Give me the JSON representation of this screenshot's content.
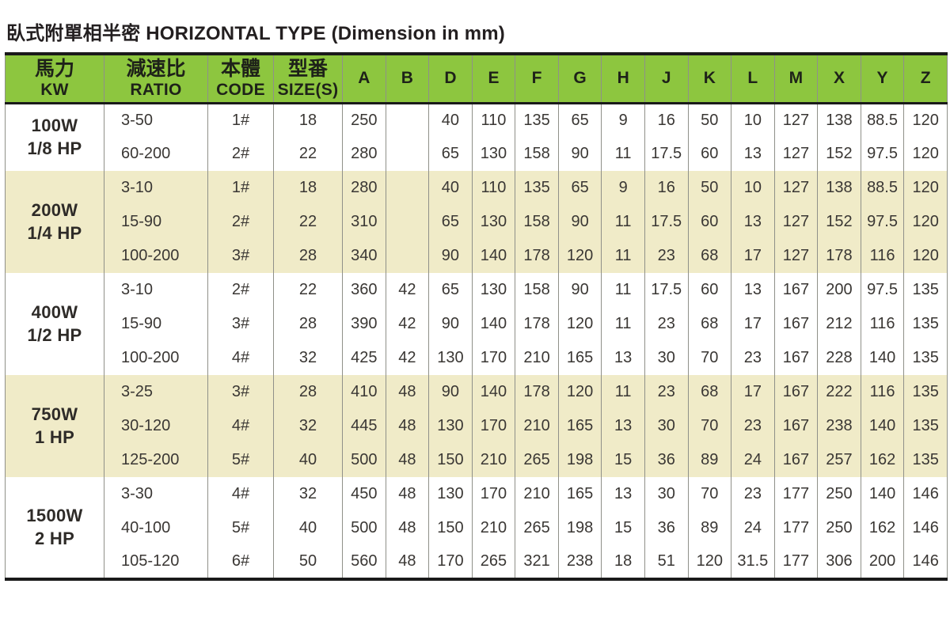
{
  "title": "臥式附單相半密 HORIZONTAL TYPE (Dimension in mm)",
  "colors": {
    "header_bg": "#8dc63f",
    "band_bg": "#f0ebc8",
    "row_bg": "#ffffff",
    "thick_line": "#1a1a1a",
    "grid_line": "#8f9089",
    "text": "#3a3734"
  },
  "table": {
    "headers": [
      {
        "zh": "馬力",
        "en": "KW"
      },
      {
        "zh": "減速比",
        "en": "RATIO"
      },
      {
        "zh": "本體",
        "en": "CODE"
      },
      {
        "zh": "型番",
        "en": "SIZE(S)"
      }
    ],
    "dim_headers": [
      "A",
      "B",
      "D",
      "E",
      "F",
      "G",
      "H",
      "J",
      "K",
      "L",
      "M",
      "X",
      "Y",
      "Z"
    ],
    "groups": [
      {
        "power": "100W",
        "hp": "1/8 HP",
        "shaded": false,
        "rows": [
          {
            "ratio": "3-50",
            "code": "1#",
            "size": "18",
            "dims": [
              "250",
              "",
              "40",
              "110",
              "135",
              "65",
              "9",
              "16",
              "50",
              "10",
              "127",
              "138",
              "88.5",
              "120"
            ]
          },
          {
            "ratio": "60-200",
            "code": "2#",
            "size": "22",
            "dims": [
              "280",
              "",
              "65",
              "130",
              "158",
              "90",
              "11",
              "17.5",
              "60",
              "13",
              "127",
              "152",
              "97.5",
              "120"
            ]
          }
        ]
      },
      {
        "power": "200W",
        "hp": "1/4 HP",
        "shaded": true,
        "rows": [
          {
            "ratio": "3-10",
            "code": "1#",
            "size": "18",
            "dims": [
              "280",
              "",
              "40",
              "110",
              "135",
              "65",
              "9",
              "16",
              "50",
              "10",
              "127",
              "138",
              "88.5",
              "120"
            ]
          },
          {
            "ratio": "15-90",
            "code": "2#",
            "size": "22",
            "dims": [
              "310",
              "",
              "65",
              "130",
              "158",
              "90",
              "11",
              "17.5",
              "60",
              "13",
              "127",
              "152",
              "97.5",
              "120"
            ]
          },
          {
            "ratio": "100-200",
            "code": "3#",
            "size": "28",
            "dims": [
              "340",
              "",
              "90",
              "140",
              "178",
              "120",
              "11",
              "23",
              "68",
              "17",
              "127",
              "178",
              "116",
              "120"
            ]
          }
        ]
      },
      {
        "power": "400W",
        "hp": "1/2 HP",
        "shaded": false,
        "rows": [
          {
            "ratio": "3-10",
            "code": "2#",
            "size": "22",
            "dims": [
              "360",
              "42",
              "65",
              "130",
              "158",
              "90",
              "11",
              "17.5",
              "60",
              "13",
              "167",
              "200",
              "97.5",
              "135"
            ]
          },
          {
            "ratio": "15-90",
            "code": "3#",
            "size": "28",
            "dims": [
              "390",
              "42",
              "90",
              "140",
              "178",
              "120",
              "11",
              "23",
              "68",
              "17",
              "167",
              "212",
              "116",
              "135"
            ]
          },
          {
            "ratio": "100-200",
            "code": "4#",
            "size": "32",
            "dims": [
              "425",
              "42",
              "130",
              "170",
              "210",
              "165",
              "13",
              "30",
              "70",
              "23",
              "167",
              "228",
              "140",
              "135"
            ]
          }
        ]
      },
      {
        "power": "750W",
        "hp": "1 HP",
        "shaded": true,
        "rows": [
          {
            "ratio": "3-25",
            "code": "3#",
            "size": "28",
            "dims": [
              "410",
              "48",
              "90",
              "140",
              "178",
              "120",
              "11",
              "23",
              "68",
              "17",
              "167",
              "222",
              "116",
              "135"
            ]
          },
          {
            "ratio": "30-120",
            "code": "4#",
            "size": "32",
            "dims": [
              "445",
              "48",
              "130",
              "170",
              "210",
              "165",
              "13",
              "30",
              "70",
              "23",
              "167",
              "238",
              "140",
              "135"
            ]
          },
          {
            "ratio": "125-200",
            "code": "5#",
            "size": "40",
            "dims": [
              "500",
              "48",
              "150",
              "210",
              "265",
              "198",
              "15",
              "36",
              "89",
              "24",
              "167",
              "257",
              "162",
              "135"
            ]
          }
        ]
      },
      {
        "power": "1500W",
        "hp": "2 HP",
        "shaded": false,
        "rows": [
          {
            "ratio": "3-30",
            "code": "4#",
            "size": "32",
            "dims": [
              "450",
              "48",
              "130",
              "170",
              "210",
              "165",
              "13",
              "30",
              "70",
              "23",
              "177",
              "250",
              "140",
              "146"
            ]
          },
          {
            "ratio": "40-100",
            "code": "5#",
            "size": "40",
            "dims": [
              "500",
              "48",
              "150",
              "210",
              "265",
              "198",
              "15",
              "36",
              "89",
              "24",
              "177",
              "250",
              "162",
              "146"
            ]
          },
          {
            "ratio": "105-120",
            "code": "6#",
            "size": "50",
            "dims": [
              "560",
              "48",
              "170",
              "265",
              "321",
              "238",
              "18",
              "51",
              "120",
              "31.5",
              "177",
              "306",
              "200",
              "146"
            ]
          }
        ]
      }
    ]
  }
}
